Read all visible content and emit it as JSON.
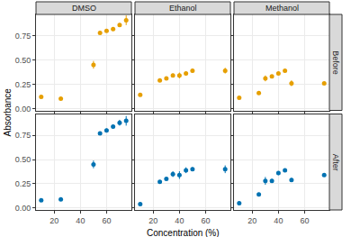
{
  "chart_data": {
    "type": "scatter",
    "x_label": "Concentration (%)",
    "y_label": "Absorbance",
    "xlim": [
      6,
      79
    ],
    "ylim": [
      -0.02,
      0.97
    ],
    "xticks": [
      20,
      40,
      60
    ],
    "yticks": [
      {
        "value": 0,
        "label": "0.00"
      },
      {
        "value": 0.25,
        "label": "0.25"
      },
      {
        "value": 0.5,
        "label": "0.50"
      },
      {
        "value": 0.75,
        "label": "0.75"
      }
    ],
    "grid": true,
    "marker": "circle",
    "panels": [
      {
        "column": "DMSO",
        "row": "Before",
        "color": "#E69F00",
        "x": [
          10,
          25,
          50,
          55,
          60,
          65,
          70,
          75
        ],
        "values": [
          0.12,
          0.1,
          0.45,
          0.78,
          0.8,
          0.82,
          0.86,
          0.91
        ],
        "error": [
          0.01,
          0.01,
          0.04,
          0.01,
          0.01,
          0.02,
          0.02,
          0.05
        ]
      },
      {
        "column": "Ethanol",
        "row": "Before",
        "color": "#E69F00",
        "x": [
          10,
          25,
          30,
          35,
          40,
          45,
          50,
          75
        ],
        "values": [
          0.14,
          0.29,
          0.31,
          0.34,
          0.34,
          0.36,
          0.39,
          0.39
        ],
        "error": [
          0.01,
          0.01,
          0.01,
          0.02,
          0.03,
          0.02,
          0.02,
          0.03
        ]
      },
      {
        "column": "Methanol",
        "row": "Before",
        "color": "#E69F00",
        "x": [
          10,
          25,
          30,
          35,
          40,
          45,
          50,
          75
        ],
        "values": [
          0.11,
          0.16,
          0.31,
          0.33,
          0.36,
          0.39,
          0.26,
          0.26
        ],
        "error": [
          0.01,
          0.01,
          0.03,
          0.01,
          0.01,
          0.01,
          0.03,
          0.01
        ]
      },
      {
        "column": "DMSO",
        "row": "After",
        "color": "#0072B2",
        "x": [
          10,
          25,
          50,
          55,
          60,
          65,
          70,
          75
        ],
        "values": [
          0.08,
          0.09,
          0.45,
          0.77,
          0.8,
          0.84,
          0.88,
          0.9
        ],
        "error": [
          0.01,
          0.01,
          0.04,
          0.01,
          0.02,
          0.02,
          0.03,
          0.05
        ]
      },
      {
        "column": "Ethanol",
        "row": "After",
        "color": "#0072B2",
        "x": [
          10,
          25,
          30,
          35,
          40,
          45,
          50,
          75
        ],
        "values": [
          0.04,
          0.27,
          0.3,
          0.35,
          0.34,
          0.39,
          0.4,
          0.4
        ],
        "error": [
          0.01,
          0.01,
          0.01,
          0.03,
          0.04,
          0.03,
          0.02,
          0.04
        ]
      },
      {
        "column": "Methanol",
        "row": "After",
        "color": "#0072B2",
        "x": [
          10,
          25,
          30,
          35,
          40,
          45,
          50,
          75
        ],
        "values": [
          0.05,
          0.14,
          0.28,
          0.28,
          0.36,
          0.39,
          0.29,
          0.34
        ],
        "error": [
          0.01,
          0.01,
          0.04,
          0.02,
          0.02,
          0.01,
          0.02,
          0.01
        ]
      }
    ]
  }
}
